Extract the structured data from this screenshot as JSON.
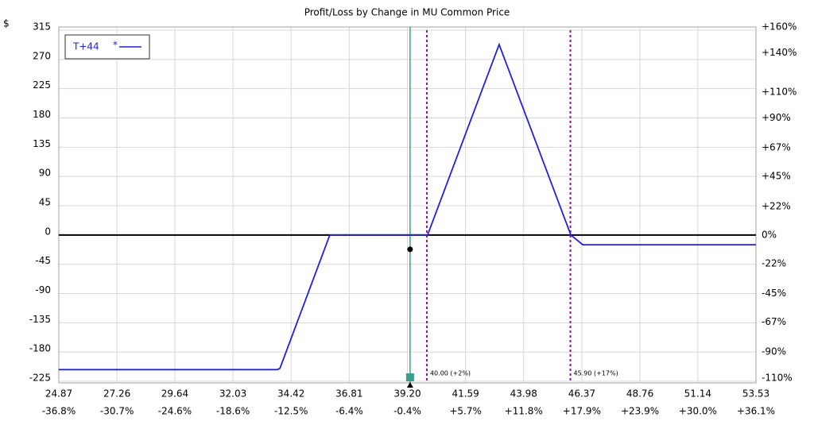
{
  "chart_data": {
    "type": "line",
    "title": "Profit/Loss by Change in MU Common Price",
    "y_label": "$",
    "grid": true,
    "legend": "top-left",
    "xlim": [
      24.87,
      53.53
    ],
    "ylim": [
      -225,
      315
    ],
    "xticks": [
      24.87,
      27.26,
      29.64,
      32.03,
      34.42,
      36.81,
      39.2,
      {
        "value": 39.2,
        "label": "39.20"
      },
      41.59,
      43.98,
      46.37,
      48.76,
      51.14,
      53.53
    ],
    "x_pct_labels": [
      "-36.8%",
      "-30.7%",
      "-24.6%",
      "-18.6%",
      "-12.5%",
      "-6.4%",
      "-0.4%",
      "+5.7%",
      "+11.8%",
      "+17.9%",
      "+23.9%",
      "+30.0%",
      "+36.1%"
    ],
    "yticks": [
      315,
      270,
      225,
      180,
      135,
      90,
      45,
      0,
      -45,
      -90,
      -135,
      -180,
      -225
    ],
    "y2lim": [
      -112.5,
      157.5
    ],
    "y2ticks": [
      {
        "value": 160,
        "label": "+160%"
      },
      {
        "value": 140,
        "label": "+140%"
      },
      {
        "value": 110,
        "label": "+110%"
      },
      {
        "value": 90,
        "label": "+90%"
      },
      {
        "value": 67,
        "label": "+67%"
      },
      {
        "value": 45,
        "label": "+45%"
      },
      {
        "value": 22,
        "label": "+22%"
      },
      {
        "value": 0,
        "label": "0%"
      },
      {
        "value": -22,
        "label": "-22%"
      },
      {
        "value": -45,
        "label": "-45%"
      },
      {
        "value": -67,
        "label": "-67%"
      },
      {
        "value": -90,
        "label": "-90%"
      },
      {
        "value": -110,
        "label": "-110%"
      }
    ],
    "zero_line_color": "#000000",
    "series": [
      {
        "name": "T+44",
        "legend_symbol": "*",
        "color": "#2020e0",
        "x": [
          24.87,
          33.86,
          33.96,
          36.01,
          40.03,
          42.97,
          45.92,
          46.41,
          53.53
        ],
        "values": [
          -207,
          -207,
          -205,
          0,
          0,
          293,
          0,
          -15,
          -15
        ]
      }
    ],
    "current_price": {
      "x": 39.31,
      "expected_value": -22,
      "color": "#3a9e8e"
    },
    "markers": [
      {
        "x": 40.0,
        "label": "40.00 (+2%)"
      },
      {
        "x": 45.9,
        "label": "45.90 (+17%)"
      }
    ],
    "marker_color": "#8b1a8b"
  }
}
